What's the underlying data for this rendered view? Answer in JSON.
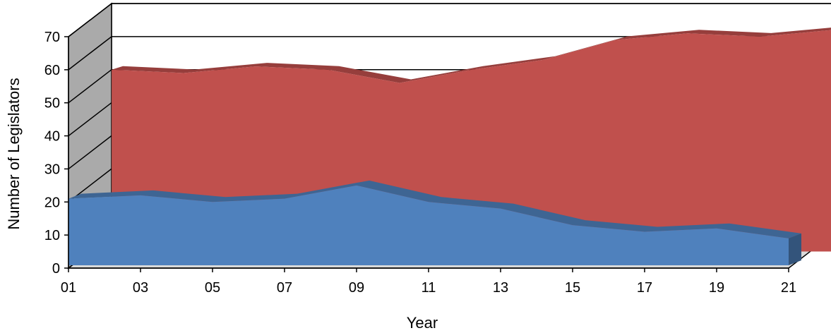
{
  "chart_data": {
    "type": "area",
    "style": "3d",
    "title": "",
    "xlabel": "Year",
    "ylabel": "Number of Legislators",
    "ylim": [
      0,
      70
    ],
    "yticks": [
      0,
      10,
      20,
      30,
      40,
      50,
      60,
      70
    ],
    "xticks": [
      "01",
      "03",
      "05",
      "07",
      "09",
      "11",
      "13",
      "15",
      "17",
      "19",
      "21"
    ],
    "grid": true,
    "legend": "none",
    "series": [
      {
        "color": "#4f81bd",
        "x": [
          1,
          3,
          5,
          7,
          9,
          11,
          13,
          15,
          17,
          19,
          21
        ],
        "values": [
          21,
          22,
          20,
          21,
          25,
          20,
          18,
          13,
          11,
          12,
          9
        ]
      },
      {
        "color": "#c0504d",
        "x": [
          2,
          4,
          6,
          8,
          10,
          12,
          14,
          16,
          18,
          20,
          22
        ],
        "values": [
          55,
          54,
          56,
          55,
          51,
          55,
          58,
          64,
          66,
          65,
          67
        ]
      }
    ],
    "colors": {
      "wall": "#ffffff",
      "side_wall": "#aaaaaa",
      "floor": "#d9d9d9",
      "grid": "#000000"
    }
  }
}
